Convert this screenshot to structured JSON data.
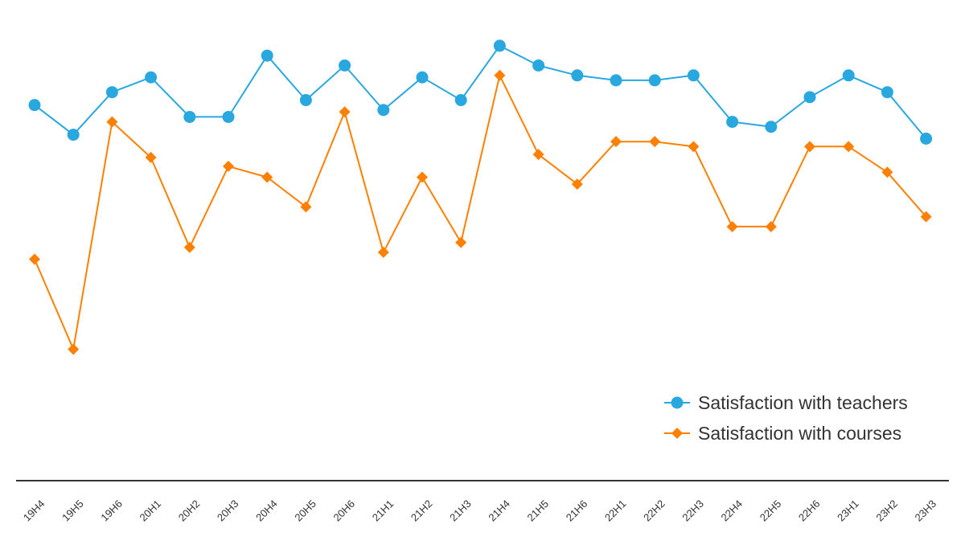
{
  "chart_data": {
    "type": "line",
    "title": "",
    "xlabel": "",
    "ylabel": "",
    "categories": [
      "19H4",
      "19H5",
      "19H6",
      "20H1",
      "20H2",
      "20H3",
      "20H4",
      "20H5",
      "20H6",
      "21H1",
      "21H2",
      "21H3",
      "21H4",
      "21H5",
      "21H6",
      "22H1",
      "22H2",
      "22H3",
      "22H4",
      "22H5",
      "22H6",
      "23H1",
      "23H2",
      "23H3"
    ],
    "series": [
      {
        "name": "Satisfaction with teachers",
        "color": "#29a8e0",
        "marker": "circle",
        "values": [
          73.0,
          70.0,
          74.3,
          75.8,
          71.8,
          71.8,
          78.0,
          73.5,
          77.0,
          72.5,
          75.8,
          73.5,
          79.0,
          77.0,
          76.0,
          75.5,
          75.5,
          76.0,
          71.3,
          70.8,
          73.8,
          76.0,
          74.3,
          69.6
        ]
      },
      {
        "name": "Satisfaction with courses",
        "color": "#ff8000",
        "marker": "diamond",
        "values": [
          57.4,
          48.3,
          71.3,
          67.7,
          58.6,
          66.8,
          65.7,
          62.7,
          72.3,
          58.1,
          65.7,
          59.1,
          76.0,
          68.0,
          65.0,
          69.3,
          69.3,
          68.8,
          60.7,
          60.7,
          68.8,
          68.8,
          66.2,
          61.7
        ]
      }
    ],
    "ylim": [
      35,
      82
    ],
    "grid": false,
    "legend_position": "bottom-right"
  }
}
